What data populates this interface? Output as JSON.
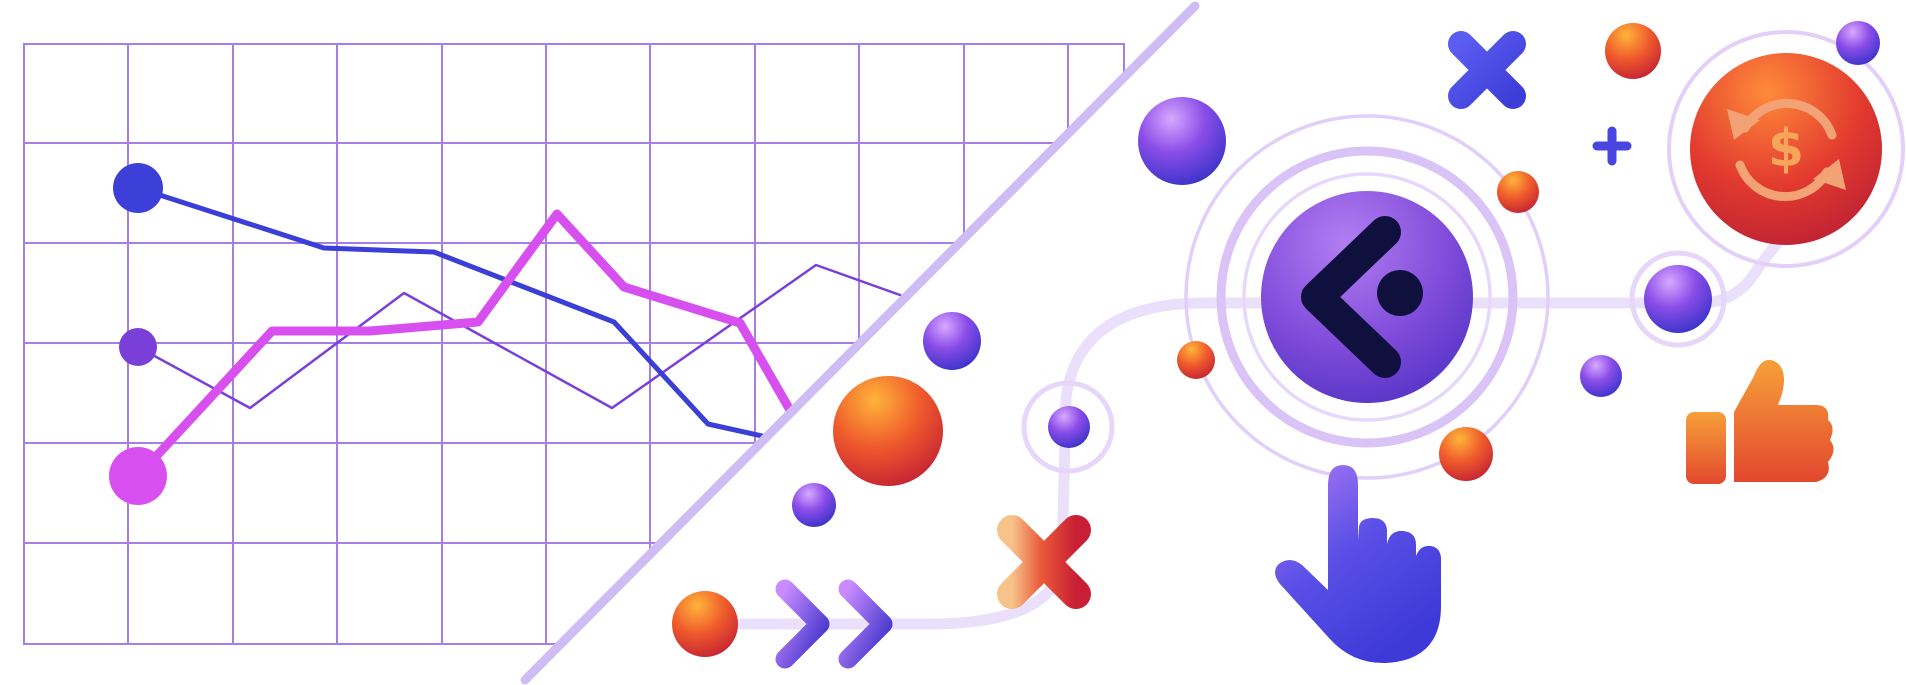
{
  "illustration": {
    "theme": "analytics-to-conversion",
    "colors": {
      "grid": "#a77ee6",
      "line_blue": "#3b3fd6",
      "line_magenta": "#d84ff0",
      "line_violet": "#7a3fd9",
      "divider": "#cfbcf5",
      "path": "#e9ddfb",
      "ring": "#dcc8f8",
      "navy": "#10103f",
      "orange": "#f59a3a",
      "red": "#cf2236"
    },
    "icons": [
      "line-chart",
      "diagonal-divider",
      "back-arrow-logo-icon",
      "dollar-refresh-icon",
      "thumbs-up-icon",
      "pointing-hand-icon",
      "double-chevron-right-icon",
      "x-mark-icon",
      "plus-icon",
      "sphere"
    ]
  }
}
